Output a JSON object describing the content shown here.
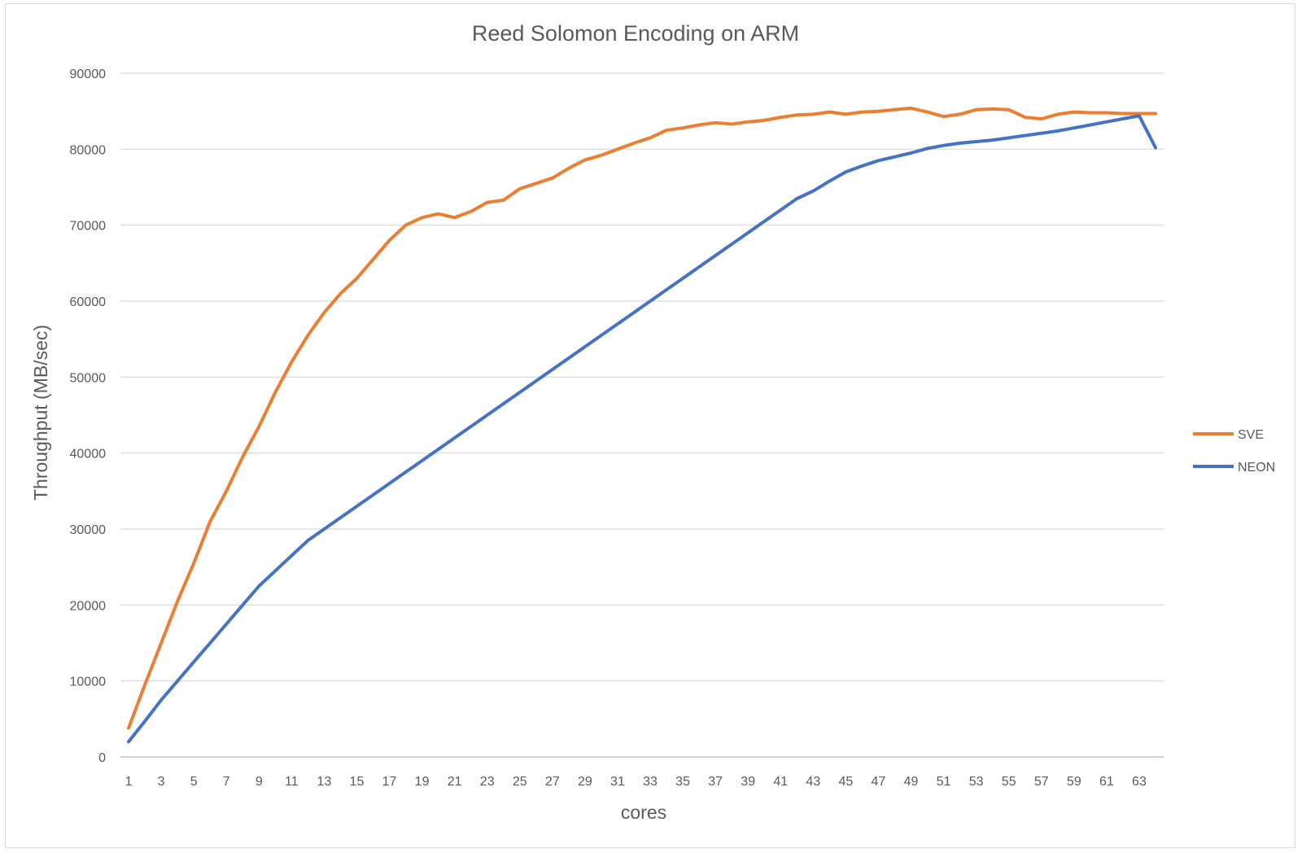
{
  "chart_data": {
    "type": "line",
    "title": "Reed Solomon Encoding on ARM",
    "xlabel": "cores",
    "ylabel": "Throughput (MB/sec)",
    "ylim": [
      0,
      90000
    ],
    "yticks": [
      0,
      10000,
      20000,
      30000,
      40000,
      50000,
      60000,
      70000,
      80000,
      90000
    ],
    "xlim": [
      1,
      64
    ],
    "xticks": [
      1,
      3,
      5,
      7,
      9,
      11,
      13,
      15,
      17,
      19,
      21,
      23,
      25,
      27,
      29,
      31,
      33,
      35,
      37,
      39,
      41,
      43,
      45,
      47,
      49,
      51,
      53,
      55,
      57,
      59,
      61,
      63
    ],
    "grid": "horizontal",
    "legend_position": "right",
    "x": [
      1,
      2,
      3,
      4,
      5,
      6,
      7,
      8,
      9,
      10,
      11,
      12,
      13,
      14,
      15,
      16,
      17,
      18,
      19,
      20,
      21,
      22,
      23,
      24,
      25,
      26,
      27,
      28,
      29,
      30,
      31,
      32,
      33,
      34,
      35,
      36,
      37,
      38,
      39,
      40,
      41,
      42,
      43,
      44,
      45,
      46,
      47,
      48,
      49,
      50,
      51,
      52,
      53,
      54,
      55,
      56,
      57,
      58,
      59,
      60,
      61,
      62,
      63,
      64
    ],
    "series": [
      {
        "name": "SVE",
        "color": "#ed7d31",
        "values": [
          3800,
          9500,
          15000,
          20500,
          25500,
          31000,
          35000,
          39500,
          43500,
          48000,
          52000,
          55500,
          58500,
          61000,
          63000,
          65500,
          68000,
          70000,
          71000,
          71500,
          71000,
          71800,
          73000,
          73300,
          74800,
          75500,
          76200,
          77500,
          78600,
          79200,
          80000,
          80800,
          81500,
          82500,
          82800,
          83200,
          83500,
          83300,
          83600,
          83800,
          84200,
          84500,
          84600,
          84900,
          84600,
          84900,
          85000,
          85200,
          85400,
          84900,
          84300,
          84600,
          85200,
          85300,
          85200,
          84200,
          84000,
          84600,
          84900,
          84800,
          84800,
          84700,
          84700,
          84700
        ]
      },
      {
        "name": "NEON",
        "color": "#4472c4",
        "values": [
          2000,
          4700,
          7500,
          10000,
          12500,
          15000,
          17500,
          20000,
          22500,
          24500,
          26500,
          28500,
          30000,
          31500,
          33000,
          34500,
          36000,
          37500,
          39000,
          40500,
          42000,
          43500,
          45000,
          46500,
          48000,
          49500,
          51000,
          52500,
          54000,
          55500,
          57000,
          58500,
          60000,
          61500,
          63000,
          64500,
          66000,
          67500,
          69000,
          70500,
          72000,
          73500,
          74500,
          75800,
          77000,
          77800,
          78500,
          79000,
          79500,
          80100,
          80500,
          80800,
          81000,
          81200,
          81500,
          81800,
          82100,
          82400,
          82800,
          83200,
          83600,
          84000,
          84400,
          80200
        ]
      }
    ]
  }
}
